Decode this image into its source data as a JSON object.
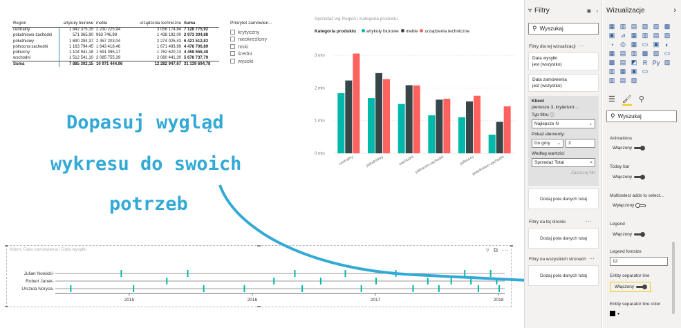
{
  "matrix": {
    "headers": [
      "Region",
      "artykuły biurowe",
      "meble",
      "urządzenia techniczne",
      "Suma"
    ],
    "rows": [
      [
        "centralny",
        "1 842 375,15",
        "2 230 225,94",
        "3 056 174,84",
        "7 128 775,92"
      ],
      [
        "południowo-zachodni",
        "571 365,90",
        "963 746,98",
        "1 438 192,00",
        "2 973 304,88"
      ],
      [
        "południowy",
        "1 690 284,37",
        "2 457 203,04",
        "2 274 025,43",
        "6 421 512,83"
      ],
      [
        "północno-zachodni",
        "1 163 794,45",
        "1 643 418,46",
        "1 671 493,99",
        "4 478 706,89"
      ],
      [
        "północny",
        "1 104 941,18",
        "1 591 095,17",
        "1 762 620,13",
        "4 458 656,48"
      ],
      [
        "wschodni",
        "1 512 541,10",
        "2 085 755,39",
        "2 080 441,30",
        "5 678 737,79"
      ]
    ],
    "total": [
      "Suma",
      "7 885 302,15",
      "10 971 444,96",
      "12 282 947,67",
      "31 139 694,78"
    ]
  },
  "slicer": {
    "title": "Priorytet zamówien...",
    "options": [
      "krytyczny",
      "nieokreślony",
      "niski",
      "średni",
      "wysoki"
    ]
  },
  "chart_data": {
    "type": "bar",
    "title": "Sprzedaż wg Region i Kategoria produktu",
    "legend_title": "Kategoria produktu",
    "categories": [
      "centralny",
      "południowy",
      "wschodni",
      "północno-zachodni",
      "północny",
      "południowo-zachodni"
    ],
    "series": [
      {
        "name": "artykuły biurowe",
        "color": "#01b8aa",
        "values": [
          1842375.15,
          1690284.37,
          1512541.1,
          1163794.45,
          1104941.18,
          571365.9
        ]
      },
      {
        "name": "meble",
        "color": "#374649",
        "values": [
          2230225.94,
          2457203.04,
          2085755.39,
          1643418.46,
          1591095.17,
          963746.98
        ]
      },
      {
        "name": "urządzenia techniczne",
        "color": "#fd625e",
        "values": [
          3056174.84,
          2274025.43,
          2080441.3,
          1671493.99,
          1762620.13,
          1438192.0
        ]
      }
    ],
    "yticks": [
      "0 mln",
      "1 mln",
      "2 mln",
      "3 mln"
    ],
    "ylim": [
      0,
      3300000
    ],
    "grid": true,
    "legend_position": "top-left"
  },
  "timeline": {
    "title": "Klient, Data zamówienia i Data wysyłki",
    "rows": [
      "Julian Nowicki-",
      "Robert Janek-",
      "Urszula Noryca-"
    ],
    "years": [
      "2015",
      "2016",
      "2017",
      "2018"
    ],
    "color": "#01b8aa",
    "events": [
      [
        2014.93,
        2015.47,
        2016.34,
        2016.75,
        2017.16,
        2017.72,
        2017.93
      ],
      [
        2015.3,
        2016.17,
        2016.55,
        2017.0,
        2017.42,
        2017.61,
        2017.77,
        2017.98
      ],
      [
        2014.52,
        2015.03,
        2015.6,
        2015.93,
        2016.4,
        2016.88,
        2017.3,
        2017.51,
        2017.83,
        2018.0
      ]
    ]
  },
  "annotation": {
    "line1": "Dopasuj wygląd",
    "line2": "wykresu do swoich",
    "line3": "potrzeb"
  },
  "filters": {
    "title": "Filtry",
    "search_placeholder": "Wyszukaj",
    "section_visual": "Filtry dla tej wizualizacji",
    "card1_name": "Data wysyłki",
    "card1_state": "jest (wszystko)",
    "card2_name": "Data zamówienia",
    "card2_state": "jest (wszystko)",
    "klient": {
      "name": "Klient",
      "subtitle": "pierwsze 3, kryterium:...",
      "type_label": "Typ filtru",
      "type_value": "Najlepsze N",
      "show_label": "Pokaż elementy:",
      "direction": "Do góry",
      "count": "3",
      "by_value_label": "Według wartości",
      "by_value": "Sprzedaż Total",
      "apply": "Zastosuj filtr"
    },
    "dropzone": "Dodaj pola danych tutaj",
    "section_page": "Filtry na tej stronie",
    "section_all": "Filtry na wszystkich stronach"
  },
  "viz": {
    "title": "Wizualizacje",
    "search_placeholder": "Wyszukaj",
    "props": {
      "animations": "Animations",
      "today_bar": "Today bar",
      "multiselect": "Multiselect adds to select...",
      "legend": "Legend",
      "legend_fontsize": "Legend fontsize",
      "legend_fontsize_value": "12",
      "entity_sep": "Entity separator line",
      "entity_sep_color": "Entity separator line color",
      "on": "Włączony",
      "off": "Wyłączony"
    }
  }
}
